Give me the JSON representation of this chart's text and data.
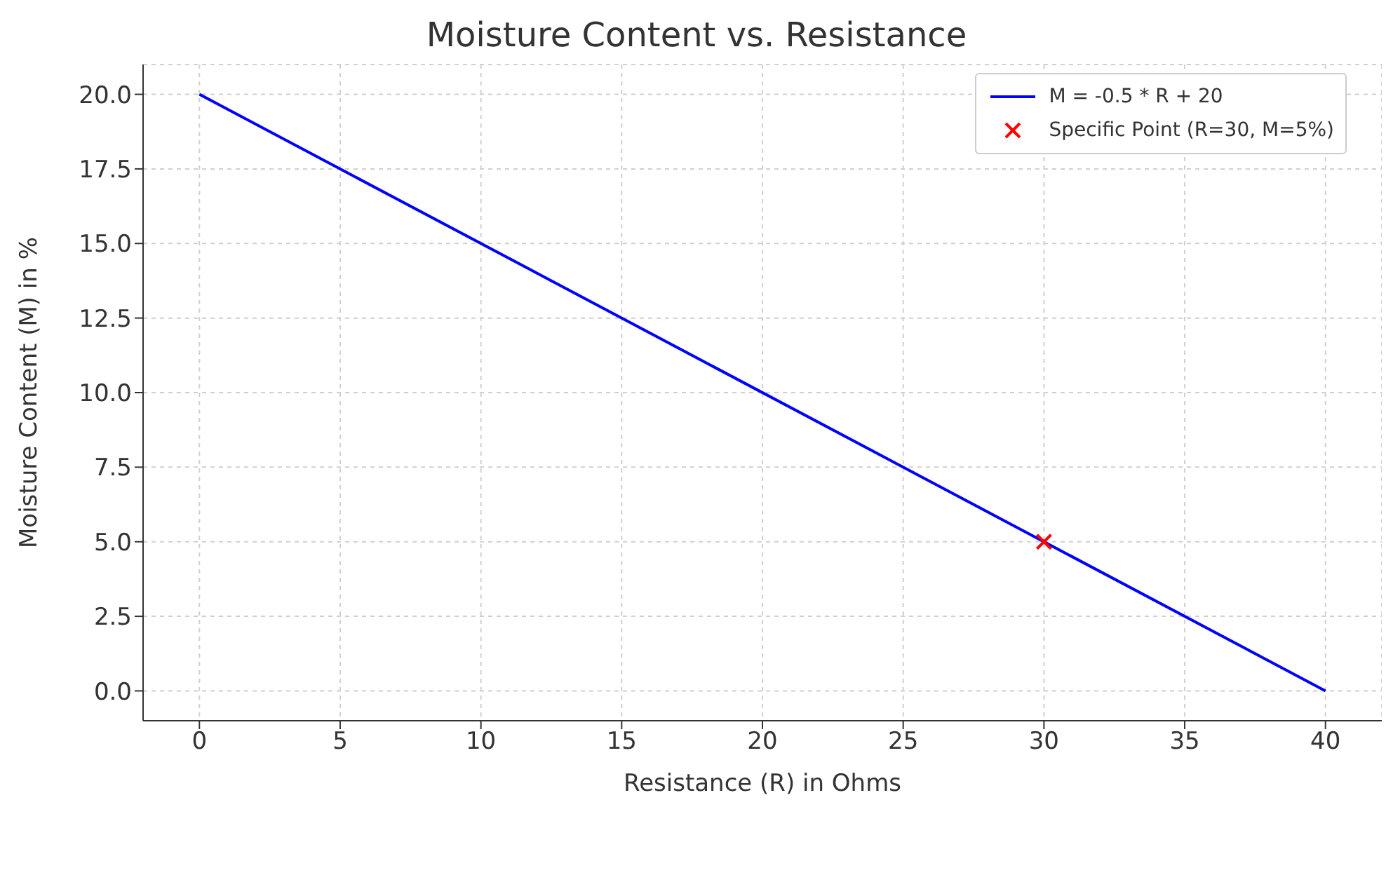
{
  "chart_data": {
    "type": "line",
    "title": "Moisture Content vs. Resistance",
    "xlabel": "Resistance (R) in Ohms",
    "ylabel": "Moisture Content (M) in %",
    "series": [
      {
        "name": "M = -0.5 * R + 20",
        "color": "#0000ff",
        "x": [
          0,
          40
        ],
        "values": [
          20,
          0
        ],
        "marker": "none",
        "line_style": "solid"
      },
      {
        "name": "Specific Point (R=30, M=5%)",
        "type": "scatter",
        "color": "#ff0000",
        "x": [
          30
        ],
        "values": [
          5
        ],
        "marker": "cross"
      }
    ],
    "xlim": [
      -2,
      42
    ],
    "xticks": [
      0,
      5,
      10,
      15,
      20,
      25,
      30,
      35,
      40
    ],
    "ylim": [
      -1,
      21
    ],
    "yticks": [
      {
        "value": 0,
        "label": "0.0"
      },
      {
        "value": 2.5,
        "label": "2.5"
      },
      {
        "value": 5,
        "label": "5.0"
      },
      {
        "value": 7.5,
        "label": "7.5"
      },
      {
        "value": 10,
        "label": "10.0"
      },
      {
        "value": 12.5,
        "label": "12.5"
      },
      {
        "value": 15,
        "label": "15.0"
      },
      {
        "value": 17.5,
        "label": "17.5"
      },
      {
        "value": 20,
        "label": "20.0"
      }
    ],
    "grid": true,
    "legend": "top right"
  }
}
